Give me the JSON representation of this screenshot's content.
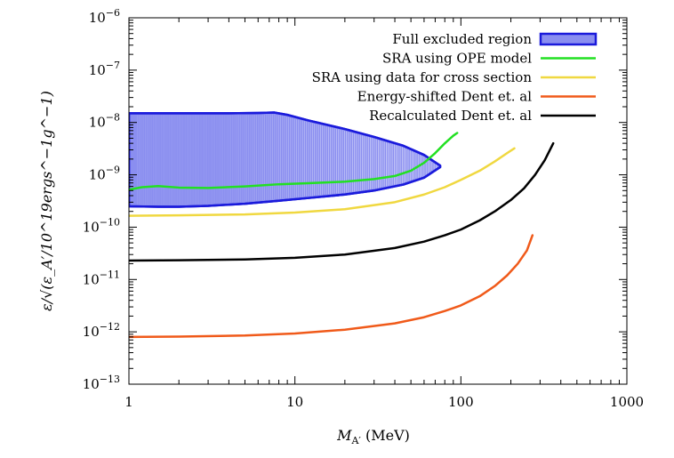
{
  "chart_data": {
    "type": "line",
    "x_scale": "log",
    "y_scale": "log",
    "xlim": [
      1,
      1000
    ],
    "ylim": [
      1e-13,
      1e-06
    ],
    "x_ticks": [
      1,
      10,
      100,
      1000
    ],
    "x_tick_labels": [
      "1",
      "10",
      "100",
      "1000"
    ],
    "y_ticks": [
      1e-13,
      1e-12,
      1e-11,
      1e-10,
      1e-09,
      1e-08,
      1e-07,
      1e-06
    ],
    "y_tick_labels": [
      {
        "base": "10",
        "exp": "−13"
      },
      {
        "base": "10",
        "exp": "−12"
      },
      {
        "base": "10",
        "exp": "−11"
      },
      {
        "base": "10",
        "exp": "−10"
      },
      {
        "base": "10",
        "exp": "−9"
      },
      {
        "base": "10",
        "exp": "−8"
      },
      {
        "base": "10",
        "exp": "−7"
      },
      {
        "base": "10",
        "exp": "−6"
      }
    ],
    "xlabel": "M",
    "xlabel_sub": "A′",
    "xlabel_unit": " (MeV)",
    "ylabel": "ε/√(ε_A′/10^19ergs^−1g^−1)",
    "legend_position": "top-right",
    "grid": false,
    "series": [
      {
        "name": "Full excluded region",
        "kind": "region",
        "color": "#1a1adb",
        "fill": "#8a8ef0",
        "upper": {
          "x": [
            1,
            2,
            4,
            6,
            7.5,
            9,
            12,
            20,
            30,
            45,
            60,
            75
          ],
          "y": [
            1.5e-08,
            1.5e-08,
            1.5e-08,
            1.52e-08,
            1.55e-08,
            1.4e-08,
            1.1e-08,
            7.5e-09,
            5.3e-09,
            3.6e-09,
            2.4e-09,
            1.5e-09
          ]
        },
        "lower": {
          "x": [
            1,
            1.5,
            2,
            3,
            5,
            8,
            12,
            20,
            30,
            45,
            60,
            75
          ],
          "y": [
            2.5e-10,
            2.45e-10,
            2.45e-10,
            2.55e-10,
            2.8e-10,
            3.2e-10,
            3.6e-10,
            4.2e-10,
            5e-10,
            6.5e-10,
            8.8e-10,
            1.4e-09
          ]
        }
      },
      {
        "name": "SRA using OPE model",
        "kind": "line",
        "color": "#22e022",
        "x": [
          1,
          1.2,
          1.5,
          2,
          3,
          5,
          8,
          12,
          20,
          30,
          40,
          50,
          60,
          70,
          80,
          90,
          95
        ],
        "y": [
          5.2e-10,
          5.8e-10,
          6.1e-10,
          5.7e-10,
          5.6e-10,
          6e-10,
          6.6e-10,
          6.9e-10,
          7.4e-10,
          8.3e-10,
          9.5e-10,
          1.2e-09,
          1.7e-09,
          2.6e-09,
          4e-09,
          5.6e-09,
          6.3e-09
        ]
      },
      {
        "name": "SRA using data for cross section",
        "kind": "line",
        "color": "#f0d840",
        "x": [
          1,
          2,
          5,
          10,
          20,
          40,
          60,
          80,
          100,
          130,
          160,
          190,
          210
        ],
        "y": [
          1.65e-10,
          1.68e-10,
          1.75e-10,
          1.9e-10,
          2.2e-10,
          3e-10,
          4.2e-10,
          5.8e-10,
          8e-10,
          1.2e-09,
          1.8e-09,
          2.6e-09,
          3.2e-09
        ]
      },
      {
        "name": "Energy-shifted Dent et. al",
        "kind": "line",
        "color": "#f05a1a",
        "x": [
          1,
          2,
          5,
          10,
          20,
          40,
          60,
          80,
          100,
          130,
          160,
          190,
          220,
          250,
          270
        ],
        "y": [
          8e-13,
          8.1e-13,
          8.5e-13,
          9.3e-13,
          1.1e-12,
          1.45e-12,
          1.9e-12,
          2.5e-12,
          3.2e-12,
          4.8e-12,
          7.5e-12,
          1.2e-11,
          2e-11,
          3.6e-11,
          7e-11
        ]
      },
      {
        "name": "Recalculated Dent et. al",
        "kind": "line",
        "color": "#000000",
        "x": [
          1,
          2,
          5,
          10,
          20,
          40,
          60,
          80,
          100,
          130,
          160,
          200,
          240,
          280,
          320,
          360
        ],
        "y": [
          2.3e-11,
          2.33e-11,
          2.42e-11,
          2.6e-11,
          3e-11,
          4e-11,
          5.3e-11,
          7e-11,
          9e-11,
          1.35e-10,
          2e-10,
          3.3e-10,
          5.5e-10,
          1e-09,
          1.9e-09,
          4e-09
        ]
      }
    ]
  }
}
